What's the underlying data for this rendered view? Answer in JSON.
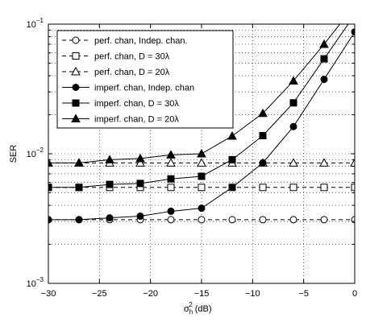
{
  "chart_data": {
    "type": "line",
    "xlabel": "σ_h^2 (dB)",
    "xlabel_base": "σ",
    "xlabel_sup": "2",
    "xlabel_sub": "h",
    "xlabel_rest": " (dB)",
    "ylabel": "SER",
    "xlim": [
      -30,
      0
    ],
    "ylim": [
      0.001,
      0.1
    ],
    "yscale": "log",
    "grid": true,
    "legend_position": "top-left",
    "x_ticks": [
      {
        "value": -30,
        "label": "−30"
      },
      {
        "value": -25,
        "label": "−25"
      },
      {
        "value": -20,
        "label": "−20"
      },
      {
        "value": -15,
        "label": "−15"
      },
      {
        "value": -10,
        "label": "−10"
      },
      {
        "value": -5,
        "label": "−5"
      },
      {
        "value": 0,
        "label": "0"
      }
    ],
    "y_ticks": [
      {
        "value": 0.1,
        "base": "10",
        "exp": "−1"
      },
      {
        "value": 0.01,
        "base": "10",
        "exp": "−2"
      },
      {
        "value": 0.001,
        "base": "10",
        "exp": "−3"
      }
    ],
    "series": [
      {
        "name": "perf. chan, Indep. chan.",
        "marker": "circle",
        "filled": false,
        "dashed": true,
        "x": [
          -30,
          -27,
          -24,
          -21,
          -18,
          -15,
          -12,
          -9,
          -6,
          -3,
          0
        ],
        "y": [
          0.0031,
          0.0031,
          0.0031,
          0.0031,
          0.0031,
          0.0031,
          0.0031,
          0.0031,
          0.0031,
          0.0031,
          0.0031
        ]
      },
      {
        "name": "perf. chan, D = 30λ",
        "marker": "square",
        "filled": false,
        "dashed": true,
        "x": [
          -30,
          -27,
          -24,
          -21,
          -18,
          -15,
          -12,
          -9,
          -6,
          -3,
          0
        ],
        "y": [
          0.0055,
          0.0055,
          0.0055,
          0.0055,
          0.0055,
          0.0055,
          0.0055,
          0.0055,
          0.0055,
          0.0055,
          0.0055
        ]
      },
      {
        "name": "perf. chan, D = 20λ",
        "marker": "triangle",
        "filled": false,
        "dashed": true,
        "x": [
          -30,
          -27,
          -24,
          -21,
          -18,
          -15,
          -12,
          -9,
          -6,
          -3,
          0
        ],
        "y": [
          0.0085,
          0.0085,
          0.0085,
          0.0085,
          0.0085,
          0.0085,
          0.0085,
          0.0085,
          0.0085,
          0.0085,
          0.0085
        ]
      },
      {
        "name": "imperf. chan, Indep. chan",
        "marker": "circle",
        "filled": true,
        "dashed": false,
        "x": [
          -30,
          -27,
          -24,
          -21,
          -18,
          -15,
          -12,
          -9,
          -6,
          -3,
          0
        ],
        "y": [
          0.0031,
          0.0031,
          0.0032,
          0.0033,
          0.0036,
          0.0038,
          0.0055,
          0.0085,
          0.0162,
          0.0375,
          0.087
        ]
      },
      {
        "name": "imperf. chan, D = 30λ",
        "marker": "square",
        "filled": true,
        "dashed": false,
        "x": [
          -30,
          -27,
          -24,
          -21,
          -18,
          -15,
          -12,
          -9,
          -6,
          -3,
          0
        ],
        "y": [
          0.0055,
          0.0055,
          0.0058,
          0.0059,
          0.0064,
          0.0067,
          0.009,
          0.0138,
          0.0247,
          0.054,
          0.118
        ]
      },
      {
        "name": "imperf. chan, D = 20λ",
        "marker": "triangle",
        "filled": true,
        "dashed": false,
        "x": [
          -30,
          -27,
          -24,
          -21,
          -18,
          -15,
          -12,
          -9,
          -6,
          -3,
          0
        ],
        "y": [
          0.0085,
          0.0085,
          0.009,
          0.0092,
          0.0098,
          0.01,
          0.0137,
          0.0205,
          0.0365,
          0.07,
          0.14
        ]
      }
    ]
  }
}
